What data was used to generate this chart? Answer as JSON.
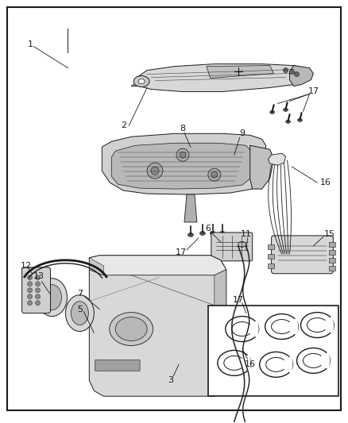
{
  "bg_color": "#ffffff",
  "border_color": "#1a1a1a",
  "line_color": "#1a1a1a",
  "text_color": "#1a1a1a",
  "fig_width": 4.38,
  "fig_height": 5.33,
  "dpi": 100,
  "gray_fill": "#c8c8c8",
  "light_fill": "#e8e8e8",
  "mid_fill": "#b0b0b0"
}
